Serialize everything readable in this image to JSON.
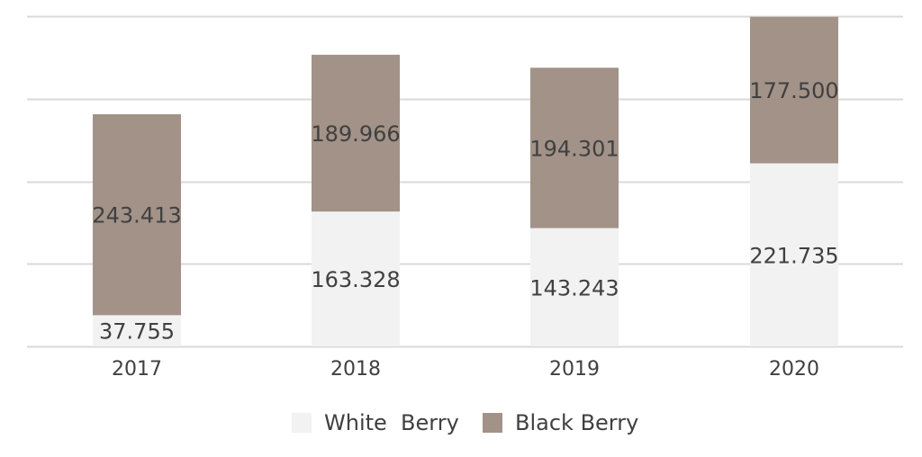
{
  "chart_data": {
    "type": "bar",
    "stacked": true,
    "categories": [
      "2017",
      "2018",
      "2019",
      "2020"
    ],
    "series": [
      {
        "name": "White  Berry",
        "values": [
          37.755,
          163.328,
          143.243,
          221.735
        ],
        "labels": [
          "37.755",
          "163.328",
          "143.243",
          "221.735"
        ],
        "color": "#F2F2F2"
      },
      {
        "name": "Black Berry",
        "values": [
          243.413,
          189.966,
          194.301,
          177.5
        ],
        "labels": [
          "243.413",
          "189.966",
          "194.301",
          "177.500"
        ],
        "color": "#A29288"
      }
    ],
    "ylim": [
      0,
      400
    ],
    "gridlines": [
      0,
      100,
      200,
      300,
      400
    ],
    "grid": true,
    "legend": "bottom"
  }
}
